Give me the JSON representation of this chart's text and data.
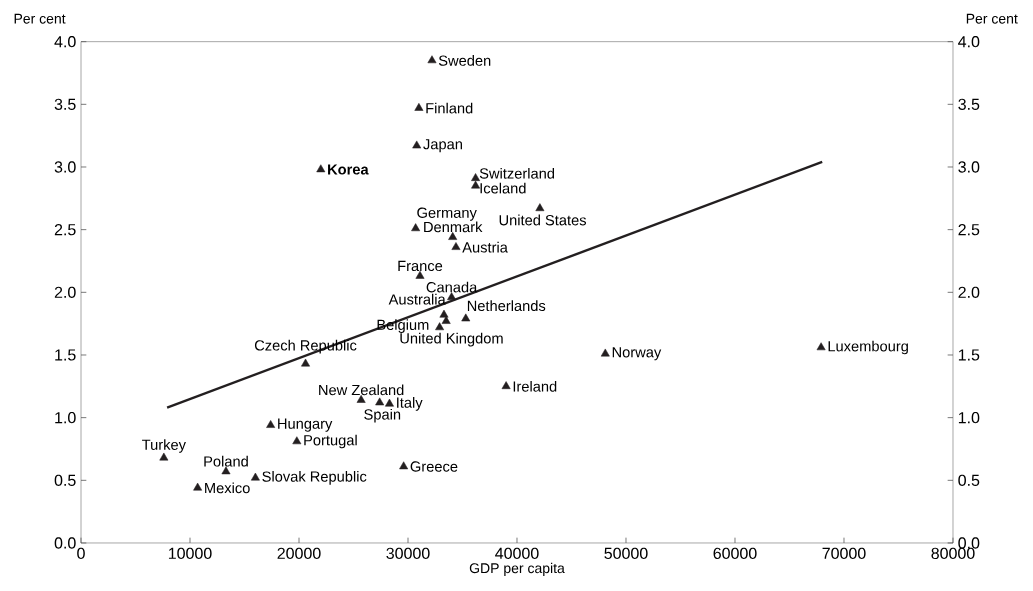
{
  "chart_data": {
    "type": "scatter",
    "xlabel": "GDP per capita",
    "ylabel": "Per cent",
    "y2label": "Per cent",
    "marker": "triangle",
    "xlim": [
      0,
      80000
    ],
    "xticks": [
      0,
      10000,
      20000,
      30000,
      40000,
      50000,
      60000,
      70000,
      80000
    ],
    "ylim": [
      0,
      4
    ],
    "yticks": [
      {
        "value": 0,
        "label": "0.0"
      },
      {
        "value": 0.5,
        "label": "0.5"
      },
      {
        "value": 1,
        "label": "1.0"
      },
      {
        "value": 1.5,
        "label": "1.5"
      },
      {
        "value": 2,
        "label": "2.0"
      },
      {
        "value": 2.5,
        "label": "2.5"
      },
      {
        "value": 3,
        "label": "3.0"
      },
      {
        "value": 3.5,
        "label": "3.5"
      },
      {
        "value": 4,
        "label": "4.0"
      }
    ],
    "y2lim": [
      0,
      4
    ],
    "y2ticks": [
      {
        "value": 0,
        "label": "0.0"
      },
      {
        "value": 0.5,
        "label": "0.5"
      },
      {
        "value": 1,
        "label": "1.0"
      },
      {
        "value": 1.5,
        "label": "1.5"
      },
      {
        "value": 2,
        "label": "2.0"
      },
      {
        "value": 2.5,
        "label": "2.5"
      },
      {
        "value": 3,
        "label": "3.0"
      },
      {
        "value": 3.5,
        "label": "3.5"
      },
      {
        "value": 4,
        "label": "4.0"
      }
    ],
    "series": [
      {
        "color": "#231f20",
        "x": [
          32200,
          31000,
          30800,
          22000,
          36200,
          36200,
          42100,
          30700,
          34100,
          34400,
          31100,
          34000,
          33300,
          35300,
          32900,
          33500,
          20600,
          25700,
          27400,
          28300,
          39000,
          48100,
          67900,
          17400,
          19800,
          7600,
          13300,
          16000,
          10700,
          29600
        ],
        "values": [
          3.85,
          3.47,
          3.17,
          2.98,
          2.91,
          2.85,
          2.67,
          2.51,
          2.44,
          2.36,
          2.13,
          1.96,
          1.82,
          1.79,
          1.72,
          1.77,
          1.43,
          1.14,
          1.12,
          1.11,
          1.25,
          1.51,
          1.56,
          0.94,
          0.81,
          0.68,
          0.57,
          0.52,
          0.44,
          0.61
        ]
      },
      {
        "type": "line",
        "color": "#231f20",
        "marker": "none",
        "x": [
          7900,
          68000
        ],
        "values": [
          1.08,
          3.04
        ]
      }
    ],
    "annotations": [
      {
        "text": "Sweden",
        "x": 32200,
        "y": 3.85
      },
      {
        "text": "Finland",
        "x": 31000,
        "y": 3.47
      },
      {
        "text": "Japan",
        "x": 30800,
        "y": 3.17
      },
      {
        "text": "**Korea**",
        "x": 22000,
        "y": 2.98
      },
      {
        "text": "Switzerland",
        "x": 36200,
        "y": 2.91
      },
      {
        "text": "Iceland",
        "x": 36200,
        "y": 2.85
      },
      {
        "text": "United States",
        "x": 42100,
        "y": 2.67
      },
      {
        "text": "Germany",
        "x": 30700,
        "y": 2.51
      },
      {
        "text": "Denmark",
        "x": 34100,
        "y": 2.44
      },
      {
        "text": "Austria",
        "x": 34400,
        "y": 2.36
      },
      {
        "text": "France",
        "x": 31100,
        "y": 2.13
      },
      {
        "text": "Canada",
        "x": 34000,
        "y": 1.96
      },
      {
        "text": "Australia",
        "x": 33300,
        "y": 1.82
      },
      {
        "text": "Netherlands",
        "x": 35300,
        "y": 1.79
      },
      {
        "text": "Belgium",
        "x": 32900,
        "y": 1.72
      },
      {
        "text": "United Kingdom",
        "x": 33500,
        "y": 1.77
      },
      {
        "text": "Czech Republic",
        "x": 20600,
        "y": 1.43
      },
      {
        "text": "New Zealand",
        "x": 25700,
        "y": 1.14
      },
      {
        "text": "Spain",
        "x": 27400,
        "y": 1.12
      },
      {
        "text": "Italy",
        "x": 28300,
        "y": 1.11
      },
      {
        "text": "Ireland",
        "x": 39000,
        "y": 1.25
      },
      {
        "text": "Norway",
        "x": 48100,
        "y": 1.51
      },
      {
        "text": "Luxembourg",
        "x": 67900,
        "y": 1.56
      },
      {
        "text": "Hungary",
        "x": 17400,
        "y": 0.94
      },
      {
        "text": "Portugal",
        "x": 19800,
        "y": 0.81
      },
      {
        "text": "Turkey",
        "x": 7600,
        "y": 0.68
      },
      {
        "text": "Poland",
        "x": 13300,
        "y": 0.57
      },
      {
        "text": "Slovak Republic",
        "x": 16000,
        "y": 0.52
      },
      {
        "text": "Mexico",
        "x": 10700,
        "y": 0.44
      },
      {
        "text": "Greece",
        "x": 29600,
        "y": 0.61
      }
    ]
  }
}
